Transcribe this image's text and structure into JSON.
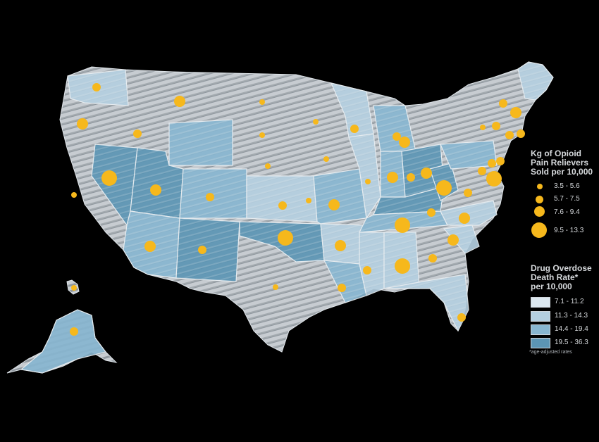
{
  "colors": {
    "background": "#000000",
    "bubble": "#f6b81c",
    "hatch": "#9ea6ad",
    "border": "#e8eef2",
    "tier1": "#dce8f0",
    "tier2": "#b4cfe0",
    "tier3": "#88b6d0",
    "tier4": "#5c95b4"
  },
  "legend": {
    "bubbles": {
      "title_lines": [
        "Kg of Opioid",
        "Pain Relievers",
        "Sold per 10,000"
      ],
      "ranges": [
        "3.5 - 5.6",
        "5.7 - 7.5",
        "7.6 - 9.4",
        "9.5 - 13.3"
      ]
    },
    "rates": {
      "title_lines": [
        "Drug Overdose",
        "Death Rate*",
        "per 10,000"
      ],
      "ranges": [
        "7.1 - 11.2",
        "11.3 - 14.3",
        "14.4 - 19.4",
        "19.5 - 36.3"
      ],
      "note": "*age-adjusted rates"
    }
  },
  "map_data": {
    "regions": [
      {
        "name": "WA",
        "death_tier": 2,
        "opioid_tier": 1
      },
      {
        "name": "OR",
        "death_tier": 1,
        "opioid_tier": 3
      },
      {
        "name": "CA",
        "death_tier": 1,
        "opioid_tier": 1
      },
      {
        "name": "NV",
        "death_tier": 4,
        "opioid_tier": 4
      },
      {
        "name": "ID",
        "death_tier": 1,
        "opioid_tier": 2
      },
      {
        "name": "MT",
        "death_tier": 1,
        "opioid_tier": 3
      },
      {
        "name": "WY",
        "death_tier": 3,
        "opioid_tier": 2
      },
      {
        "name": "UT",
        "death_tier": 4,
        "opioid_tier": 3
      },
      {
        "name": "AZ",
        "death_tier": 3,
        "opioid_tier": 3
      },
      {
        "name": "CO",
        "death_tier": 3,
        "opioid_tier": 2
      },
      {
        "name": "NM",
        "death_tier": 4,
        "opioid_tier": 2
      },
      {
        "name": "ND",
        "death_tier": 1,
        "opioid_tier": 1
      },
      {
        "name": "SD",
        "death_tier": 1,
        "opioid_tier": 1
      },
      {
        "name": "NE",
        "death_tier": 1,
        "opioid_tier": 1
      },
      {
        "name": "KS",
        "death_tier": 2,
        "opioid_tier": 2
      },
      {
        "name": "OK",
        "death_tier": 4,
        "opioid_tier": 4
      },
      {
        "name": "TX",
        "death_tier": 1,
        "opioid_tier": 1
      },
      {
        "name": "MN",
        "death_tier": 1,
        "opioid_tier": 1
      },
      {
        "name": "IA",
        "death_tier": 1,
        "opioid_tier": 1
      },
      {
        "name": "MO",
        "death_tier": 3,
        "opioid_tier": 2
      },
      {
        "name": "AR",
        "death_tier": 2,
        "opioid_tier": 3
      },
      {
        "name": "LA",
        "death_tier": 3,
        "opioid_tier": 2
      },
      {
        "name": "WI",
        "death_tier": 2,
        "opioid_tier": 2
      },
      {
        "name": "IL",
        "death_tier": 2,
        "opioid_tier": 1
      },
      {
        "name": "MI",
        "death_tier": 3,
        "opioid_tier": 3
      },
      {
        "name": "IN",
        "death_tier": 3,
        "opioid_tier": 3
      },
      {
        "name": "OH",
        "death_tier": 4,
        "opioid_tier": 3
      },
      {
        "name": "KY",
        "death_tier": 4,
        "opioid_tier": 3
      },
      {
        "name": "TN",
        "death_tier": 3,
        "opioid_tier": 4
      },
      {
        "name": "MS",
        "death_tier": 2,
        "opioid_tier": 2
      },
      {
        "name": "AL",
        "death_tier": 2,
        "opioid_tier": 4
      },
      {
        "name": "GA",
        "death_tier": 1,
        "opioid_tier": 2
      },
      {
        "name": "FL",
        "death_tier": 2,
        "opioid_tier": 2
      },
      {
        "name": "SC",
        "death_tier": 2,
        "opioid_tier": 3
      },
      {
        "name": "NC",
        "death_tier": 2,
        "opioid_tier": 2
      },
      {
        "name": "VA",
        "death_tier": 1,
        "opioid_tier": 2
      },
      {
        "name": "WV",
        "death_tier": 4,
        "opioid_tier": 4
      },
      {
        "name": "PA",
        "death_tier": 3,
        "opioid_tier": 2
      },
      {
        "name": "NY",
        "death_tier": 1,
        "opioid_tier": 1
      },
      {
        "name": "ME",
        "death_tier": 2,
        "opioid_tier": 3
      },
      {
        "name": "AK",
        "death_tier": 3,
        "opioid_tier": 2
      },
      {
        "name": "HI",
        "death_tier": 1,
        "opioid_tier": 1
      }
    ]
  }
}
